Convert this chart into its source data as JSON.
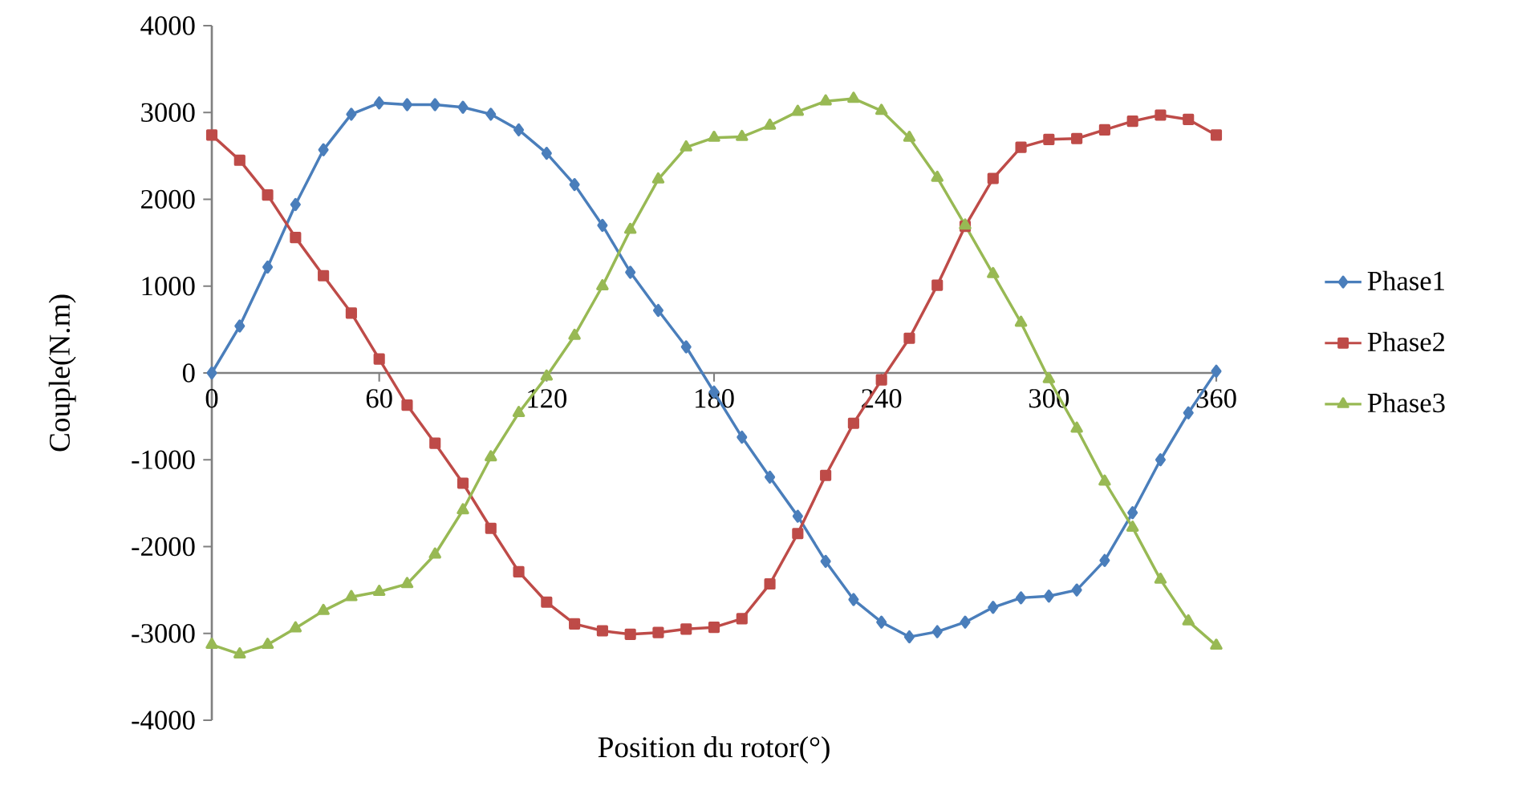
{
  "chart_data": {
    "type": "line",
    "xlabel": "Position du rotor(°)",
    "ylabel": "Couple(N.m)",
    "x": [
      0,
      10,
      20,
      30,
      40,
      50,
      60,
      70,
      80,
      90,
      100,
      110,
      120,
      130,
      140,
      150,
      160,
      170,
      180,
      190,
      200,
      210,
      220,
      230,
      240,
      250,
      260,
      270,
      280,
      290,
      300,
      310,
      320,
      330,
      340,
      350,
      360
    ],
    "xlim": [
      0,
      360
    ],
    "xticks": [
      0,
      60,
      120,
      180,
      240,
      300,
      360
    ],
    "ylim": [
      -4000,
      4000
    ],
    "yticks": [
      -4000,
      -3000,
      -2000,
      -1000,
      0,
      1000,
      2000,
      3000,
      4000
    ],
    "grid": false,
    "legend": "right",
    "series": [
      {
        "name": "Phase1",
        "color": "#4a7ebb",
        "marker": "diamond",
        "values": [
          0,
          540,
          1220,
          1940,
          2570,
          2980,
          3110,
          3090,
          3090,
          3060,
          2980,
          2800,
          2530,
          2170,
          1700,
          1160,
          720,
          300,
          -220,
          -740,
          -1200,
          -1650,
          -2170,
          -2610,
          -2870,
          -3040,
          -2980,
          -2870,
          -2700,
          -2590,
          -2570,
          -2500,
          -2160,
          -1610,
          -1000,
          -460,
          20
        ]
      },
      {
        "name": "Phase2",
        "color": "#be4b48",
        "marker": "square",
        "values": [
          2740,
          2450,
          2050,
          1560,
          1120,
          690,
          160,
          -370,
          -810,
          -1270,
          -1790,
          -2290,
          -2640,
          -2890,
          -2970,
          -3010,
          -2990,
          -2950,
          -2930,
          -2830,
          -2430,
          -1850,
          -1180,
          -580,
          -80,
          400,
          1010,
          1690,
          2240,
          2600,
          2690,
          2700,
          2800,
          2900,
          2970,
          2920,
          2740
        ]
      },
      {
        "name": "Phase3",
        "color": "#98b954",
        "marker": "triangle",
        "values": [
          -3130,
          -3240,
          -3130,
          -2940,
          -2740,
          -2580,
          -2520,
          -2430,
          -2090,
          -1580,
          -970,
          -460,
          -40,
          430,
          1000,
          1650,
          2230,
          2600,
          2710,
          2720,
          2850,
          3010,
          3130,
          3160,
          3020,
          2710,
          2250,
          1700,
          1140,
          580,
          -70,
          -640,
          -1250,
          -1780,
          -2380,
          -2860,
          -3140
        ]
      }
    ]
  }
}
